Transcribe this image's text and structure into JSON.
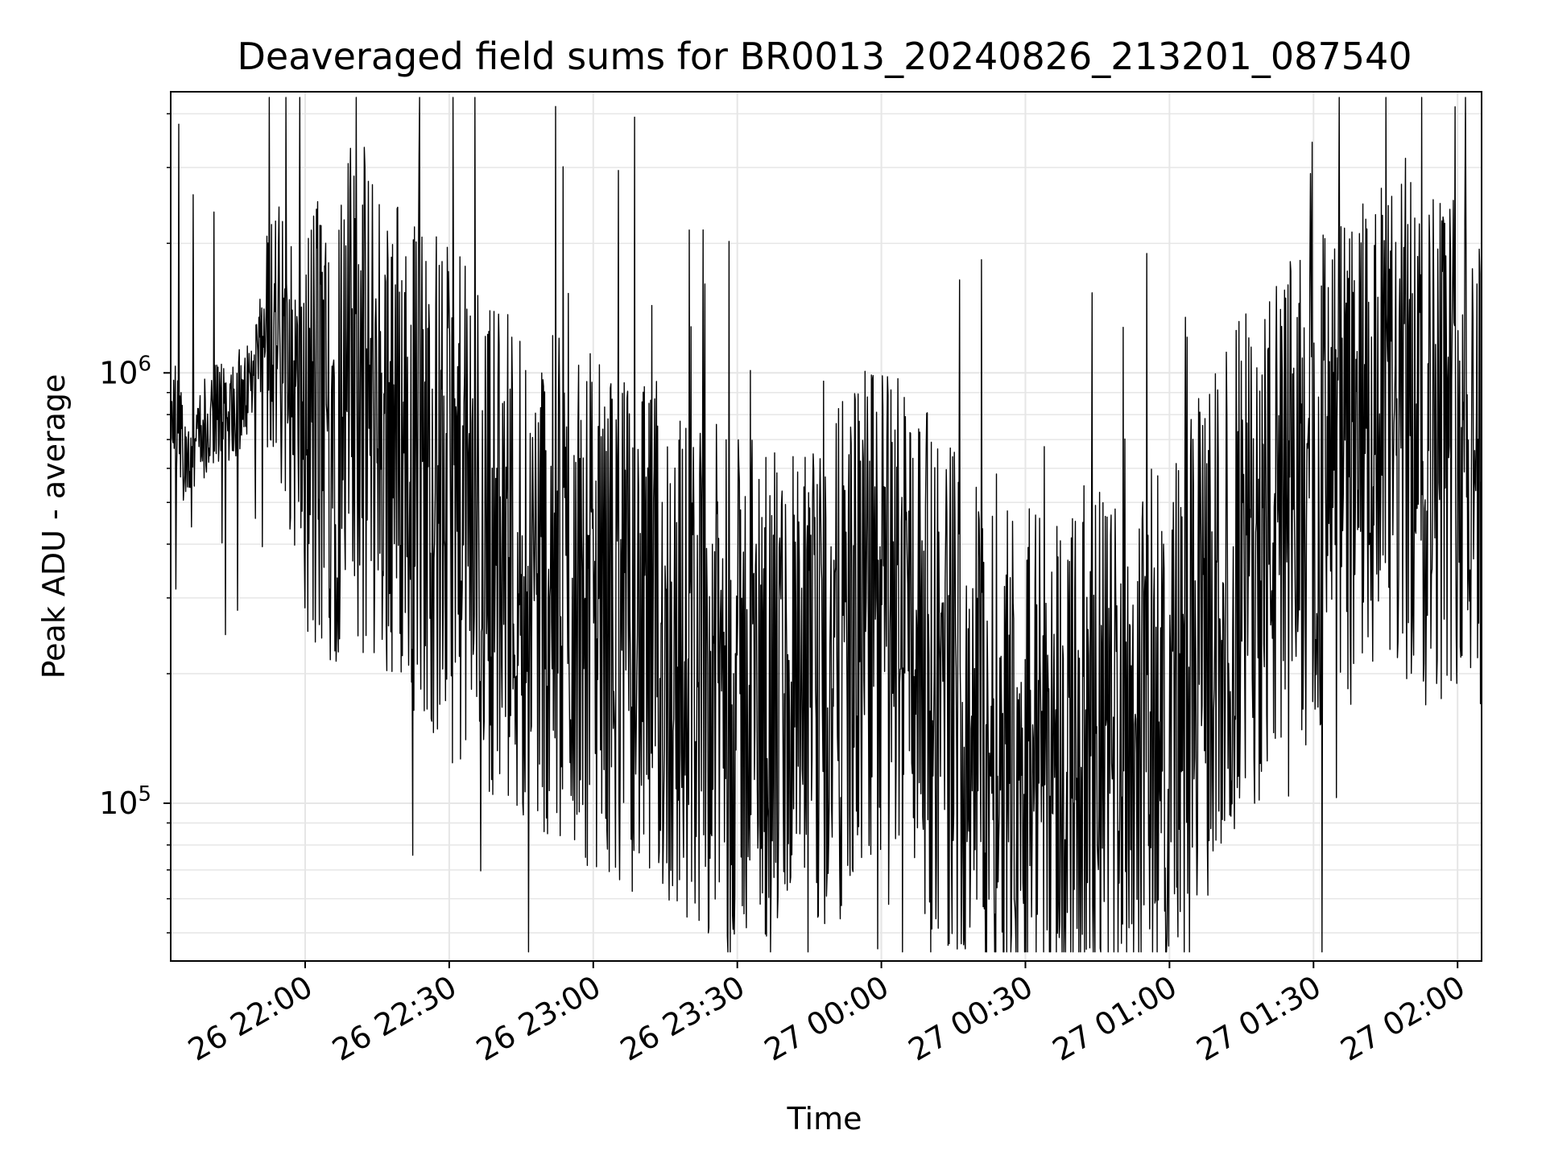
{
  "chart_data": {
    "type": "line",
    "title": "Deaveraged field sums for BR0013_20240826_213201_087540",
    "xlabel": "Time",
    "ylabel": "Peak ADU - average",
    "x_tick_labels": [
      "26 22:00",
      "26 22:30",
      "26 23:00",
      "26 23:30",
      "27 00:00",
      "27 00:30",
      "27 01:00",
      "27 01:30",
      "27 02:00"
    ],
    "y_tick_labels": [
      {
        "base": "10",
        "exp": "5",
        "value": 100000
      },
      {
        "base": "10",
        "exp": "6",
        "value": 1000000
      }
    ],
    "xlim": [
      "2024-08-26 21:32",
      "2024-08-27 02:05"
    ],
    "ylim": [
      43000,
      4500000
    ],
    "yscale": "log",
    "grid": true,
    "line_color": "#000000",
    "grid_color": "#e6e6e6",
    "series": [
      {
        "x_start": "2024-08-26 21:32",
        "x_end": "2024-08-27 02:05",
        "trend": [
          [
            "21:32",
            900000
          ],
          [
            "21:34",
            700000
          ],
          [
            "21:36",
            550000
          ],
          [
            "21:38",
            700000
          ],
          [
            "21:40",
            780000
          ],
          [
            "21:45",
            820000
          ],
          [
            "21:50",
            1000000
          ],
          [
            "21:52",
            1500000
          ],
          [
            "21:55",
            1100000
          ],
          [
            "22:00",
            700000
          ],
          [
            "22:10",
            900000
          ],
          [
            "22:20",
            700000
          ],
          [
            "22:30",
            500000
          ],
          [
            "22:45",
            350000
          ],
          [
            "23:00",
            280000
          ],
          [
            "23:15",
            220000
          ],
          [
            "23:30",
            180000
          ],
          [
            "23:45",
            160000
          ],
          [
            "23:55",
            250000
          ],
          [
            "00:05",
            300000
          ],
          [
            "00:10",
            200000
          ],
          [
            "00:20",
            160000
          ],
          [
            "00:30",
            130000
          ],
          [
            "00:45",
            140000
          ],
          [
            "01:00",
            160000
          ],
          [
            "01:15",
            350000
          ],
          [
            "01:30",
            550000
          ],
          [
            "01:45",
            700000
          ],
          [
            "02:00",
            750000
          ],
          [
            "02:05",
            700000
          ]
        ]
      }
    ]
  }
}
